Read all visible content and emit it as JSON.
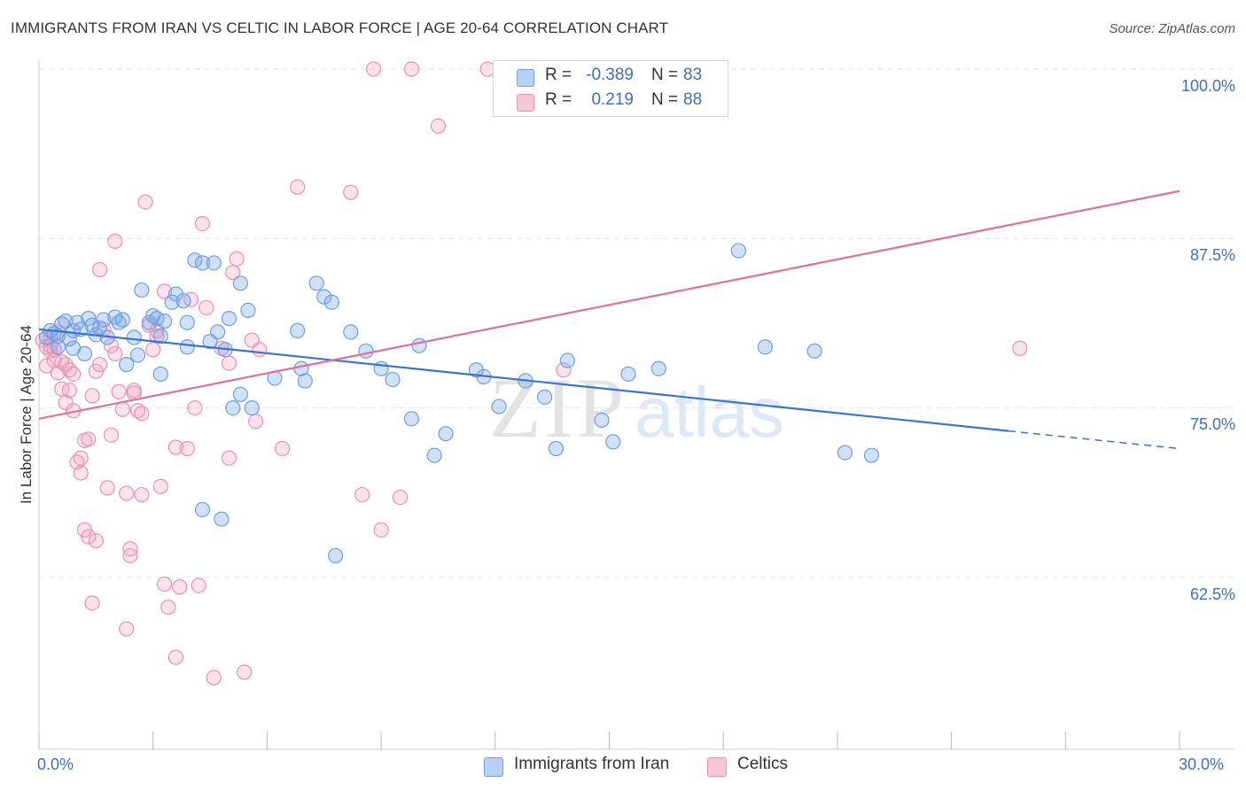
{
  "header": {
    "title": "IMMIGRANTS FROM IRAN VS CELTIC IN LABOR FORCE | AGE 20-64 CORRELATION CHART",
    "source": "Source: ZipAtlas.com"
  },
  "legend": {
    "rows": [
      {
        "r_label": "R =",
        "r_value": "-0.389",
        "n_label": "N =",
        "n_value": "83",
        "swatch_fill": "#b7d0f3",
        "swatch_stroke": "#6f9fe0"
      },
      {
        "r_label": "R =",
        "r_value": "0.219",
        "n_label": "N =",
        "n_value": "88",
        "swatch_fill": "#f8c5d6",
        "swatch_stroke": "#ea92b1"
      }
    ]
  },
  "bottom_legend": {
    "items": [
      {
        "label": "Immigrants from Iran",
        "fill": "#b7d0f3",
        "stroke": "#6f9fe0"
      },
      {
        "label": "Celtics",
        "fill": "#f8c5d6",
        "stroke": "#ea92b1"
      }
    ]
  },
  "axes": {
    "y_title": "In Labor Force | Age 20-64",
    "y_ticks": [
      "100.0%",
      "87.5%",
      "75.0%",
      "62.5%"
    ],
    "x_ticks": [
      "0.0%",
      "30.0%"
    ]
  },
  "watermark": {
    "part1": "ZIP",
    "part2": "atlas"
  },
  "colors": {
    "blue": "#3a74d0",
    "pink": "#e0719a",
    "blue_fill": "rgba(120,165,230,0.35)",
    "pink_fill": "rgba(245,160,190,0.30)",
    "tick_label": "#3d6fc4",
    "grid": "#e2e2e2"
  },
  "chart_data": {
    "type": "scatter",
    "xlim": [
      0,
      30
    ],
    "ylim": [
      52,
      101.5
    ],
    "x_unit": "percent",
    "y_unit": "percent",
    "grid": true,
    "series": [
      {
        "name": "Immigrants from Iran",
        "color": "#3a74d0",
        "trend": {
          "x1": 0,
          "y1": 80.8,
          "x2": 25.5,
          "y2": 73.3,
          "dashed_to_x": 30,
          "dashed_to_y": 72.0
        },
        "points": [
          [
            0.2,
            80.2
          ],
          [
            0.3,
            80.7
          ],
          [
            0.4,
            80.5
          ],
          [
            0.5,
            80.3
          ],
          [
            0.5,
            79.5
          ],
          [
            0.6,
            81.2
          ],
          [
            0.7,
            81.4
          ],
          [
            0.8,
            80.1
          ],
          [
            0.9,
            80.7
          ],
          [
            0.9,
            79.4
          ],
          [
            1.0,
            81.3
          ],
          [
            1.1,
            80.8
          ],
          [
            1.2,
            79.0
          ],
          [
            1.3,
            81.6
          ],
          [
            1.4,
            81.1
          ],
          [
            1.5,
            80.4
          ],
          [
            1.6,
            80.9
          ],
          [
            1.7,
            81.5
          ],
          [
            1.8,
            80.2
          ],
          [
            2.0,
            81.7
          ],
          [
            2.1,
            81.3
          ],
          [
            2.2,
            81.5
          ],
          [
            2.3,
            78.2
          ],
          [
            2.5,
            80.2
          ],
          [
            2.6,
            78.9
          ],
          [
            2.7,
            83.7
          ],
          [
            2.9,
            81.3
          ],
          [
            3.0,
            81.8
          ],
          [
            3.1,
            81.6
          ],
          [
            3.2,
            80.3
          ],
          [
            3.2,
            77.5
          ],
          [
            3.3,
            81.4
          ],
          [
            3.5,
            82.8
          ],
          [
            3.6,
            83.4
          ],
          [
            3.8,
            82.9
          ],
          [
            3.9,
            79.5
          ],
          [
            3.9,
            81.3
          ],
          [
            4.1,
            85.9
          ],
          [
            4.3,
            85.7
          ],
          [
            4.5,
            79.9
          ],
          [
            4.6,
            85.7
          ],
          [
            4.7,
            80.6
          ],
          [
            4.9,
            79.3
          ],
          [
            5.0,
            81.6
          ],
          [
            5.1,
            75.0
          ],
          [
            5.3,
            76.0
          ],
          [
            5.3,
            84.2
          ],
          [
            5.5,
            82.2
          ],
          [
            5.6,
            75.0
          ],
          [
            6.2,
            77.2
          ],
          [
            6.8,
            80.7
          ],
          [
            6.9,
            77.9
          ],
          [
            7.0,
            77.0
          ],
          [
            7.3,
            84.2
          ],
          [
            7.5,
            83.2
          ],
          [
            7.7,
            82.8
          ],
          [
            8.2,
            80.6
          ],
          [
            8.6,
            79.2
          ],
          [
            9.0,
            77.9
          ],
          [
            9.3,
            77.1
          ],
          [
            9.8,
            74.2
          ],
          [
            10.0,
            79.6
          ],
          [
            10.4,
            71.5
          ],
          [
            10.7,
            73.1
          ],
          [
            11.5,
            77.8
          ],
          [
            11.7,
            77.3
          ],
          [
            12.1,
            75.1
          ],
          [
            12.8,
            77.0
          ],
          [
            13.3,
            75.8
          ],
          [
            13.6,
            72.0
          ],
          [
            13.9,
            78.5
          ],
          [
            14.8,
            74.1
          ],
          [
            15.1,
            72.5
          ],
          [
            15.5,
            77.5
          ],
          [
            16.3,
            77.9
          ],
          [
            18.4,
            86.6
          ],
          [
            19.1,
            79.5
          ],
          [
            20.4,
            79.2
          ],
          [
            21.2,
            71.7
          ],
          [
            21.9,
            71.5
          ],
          [
            4.3,
            67.5
          ],
          [
            4.8,
            66.8
          ],
          [
            7.8,
            64.1
          ]
        ]
      },
      {
        "name": "Celtics",
        "color": "#e0719a",
        "trend": {
          "x1": 0,
          "y1": 74.2,
          "x2": 30,
          "y2": 91.0
        },
        "points": [
          [
            0.1,
            80.0
          ],
          [
            0.2,
            79.5
          ],
          [
            0.2,
            78.1
          ],
          [
            0.3,
            79.2
          ],
          [
            0.3,
            80.2
          ],
          [
            0.4,
            79.3
          ],
          [
            0.4,
            78.5
          ],
          [
            0.5,
            77.6
          ],
          [
            0.6,
            76.4
          ],
          [
            0.6,
            78.4
          ],
          [
            0.7,
            78.2
          ],
          [
            0.7,
            75.4
          ],
          [
            0.8,
            77.8
          ],
          [
            0.9,
            74.8
          ],
          [
            0.9,
            77.5
          ],
          [
            1.0,
            71.0
          ],
          [
            1.1,
            70.2
          ],
          [
            1.1,
            71.3
          ],
          [
            1.2,
            72.6
          ],
          [
            1.3,
            72.7
          ],
          [
            1.3,
            65.5
          ],
          [
            1.4,
            75.9
          ],
          [
            1.5,
            77.7
          ],
          [
            1.5,
            65.2
          ],
          [
            1.6,
            78.2
          ],
          [
            1.6,
            85.2
          ],
          [
            1.7,
            80.8
          ],
          [
            1.8,
            69.1
          ],
          [
            1.9,
            73.0
          ],
          [
            1.9,
            79.6
          ],
          [
            2.0,
            87.3
          ],
          [
            2.0,
            79.0
          ],
          [
            2.1,
            76.2
          ],
          [
            2.2,
            74.9
          ],
          [
            2.3,
            58.7
          ],
          [
            2.3,
            68.7
          ],
          [
            2.4,
            64.1
          ],
          [
            2.4,
            64.6
          ],
          [
            2.5,
            76.1
          ],
          [
            2.5,
            76.3
          ],
          [
            2.6,
            74.8
          ],
          [
            2.7,
            68.6
          ],
          [
            2.8,
            90.2
          ],
          [
            2.9,
            81.1
          ],
          [
            3.0,
            79.3
          ],
          [
            3.1,
            80.7
          ],
          [
            3.1,
            80.3
          ],
          [
            3.2,
            69.2
          ],
          [
            3.3,
            83.6
          ],
          [
            3.3,
            62.0
          ],
          [
            3.4,
            60.3
          ],
          [
            3.6,
            72.1
          ],
          [
            3.6,
            56.6
          ],
          [
            3.9,
            72.0
          ],
          [
            4.0,
            83.0
          ],
          [
            4.1,
            75.0
          ],
          [
            4.2,
            61.9
          ],
          [
            4.3,
            88.6
          ],
          [
            4.4,
            82.4
          ],
          [
            4.6,
            55.1
          ],
          [
            4.8,
            79.4
          ],
          [
            5.0,
            71.3
          ],
          [
            5.1,
            85.0
          ],
          [
            5.2,
            86.0
          ],
          [
            5.4,
            55.5
          ],
          [
            5.6,
            80.0
          ],
          [
            5.7,
            74.0
          ],
          [
            5.8,
            79.3
          ],
          [
            6.4,
            72.0
          ],
          [
            6.8,
            91.3
          ],
          [
            8.2,
            90.9
          ],
          [
            8.5,
            68.6
          ],
          [
            8.8,
            100.0
          ],
          [
            9.0,
            66.0
          ],
          [
            9.5,
            68.4
          ],
          [
            9.8,
            100.0
          ],
          [
            10.5,
            95.8
          ],
          [
            11.8,
            100.0
          ],
          [
            13.8,
            77.8
          ],
          [
            25.8,
            79.4
          ],
          [
            0.3,
            79.6
          ],
          [
            0.5,
            80.6
          ],
          [
            0.8,
            76.3
          ],
          [
            1.2,
            66.0
          ],
          [
            1.4,
            60.6
          ],
          [
            2.7,
            74.6
          ],
          [
            3.7,
            61.8
          ],
          [
            5.0,
            78.3
          ]
        ]
      }
    ]
  }
}
